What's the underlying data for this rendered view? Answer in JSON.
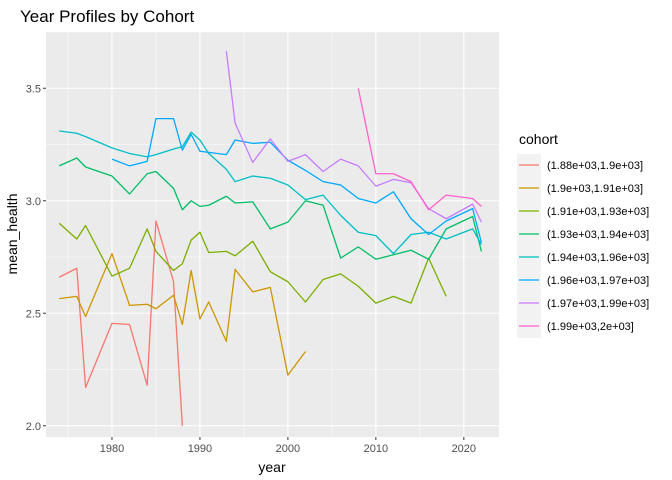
{
  "chart_data": {
    "type": "line",
    "title": "Year Profiles by Cohort",
    "xlabel": "year",
    "ylabel": "mean_health",
    "xlim": [
      1972.5,
      2024
    ],
    "ylim": [
      1.95,
      3.75
    ],
    "x_ticks": [
      1980,
      1990,
      2000,
      2010,
      2020
    ],
    "y_ticks": [
      2.0,
      2.5,
      3.0,
      3.5
    ],
    "x_tick_labels": [
      "1980",
      "1990",
      "2000",
      "2010",
      "2020"
    ],
    "y_tick_labels": [
      "2.0",
      "2.5",
      "3.0",
      "3.5"
    ],
    "grid": true,
    "legend": {
      "title": "cohort",
      "position": "right"
    },
    "series": [
      {
        "name": "(1.88e+03,1.9e+03]",
        "color": "#F8766D",
        "x": [
          1974,
          1976,
          1977,
          1980,
          1982,
          1984,
          1985,
          1987,
          1988
        ],
        "y": [
          2.66,
          2.7,
          2.17,
          2.455,
          2.45,
          2.18,
          2.91,
          2.64,
          2.0
        ]
      },
      {
        "name": "(1.9e+03,1.91e+03]",
        "color": "#CD9600",
        "x": [
          1974,
          1976,
          1977,
          1980,
          1982,
          1984,
          1985,
          1987,
          1988,
          1989,
          1990,
          1991,
          1993,
          1994,
          1996,
          1998,
          2000,
          2002
        ],
        "y": [
          2.565,
          2.575,
          2.485,
          2.765,
          2.535,
          2.54,
          2.52,
          2.58,
          2.45,
          2.69,
          2.475,
          2.55,
          2.375,
          2.695,
          2.595,
          2.615,
          2.225,
          2.33
        ]
      },
      {
        "name": "(1.91e+03,1.93e+03]",
        "color": "#7CAE00",
        "x": [
          1974,
          1976,
          1977,
          1980,
          1982,
          1984,
          1985,
          1987,
          1988,
          1989,
          1990,
          1991,
          1993,
          1994,
          1996,
          1998,
          2000,
          2002,
          2004,
          2006,
          2008,
          2010,
          2012,
          2014,
          2016,
          2018
        ],
        "y": [
          2.9,
          2.83,
          2.89,
          2.665,
          2.7,
          2.875,
          2.775,
          2.69,
          2.72,
          2.825,
          2.86,
          2.77,
          2.775,
          2.755,
          2.82,
          2.685,
          2.64,
          2.55,
          2.65,
          2.675,
          2.62,
          2.545,
          2.575,
          2.545,
          2.745,
          2.575
        ]
      },
      {
        "name": "(1.93e+03,1.94e+03]",
        "color": "#00BE67",
        "x": [
          1974,
          1976,
          1977,
          1980,
          1982,
          1984,
          1985,
          1987,
          1988,
          1989,
          1990,
          1991,
          1993,
          1994,
          1996,
          1998,
          2000,
          2002,
          2004,
          2006,
          2008,
          2010,
          2012,
          2014,
          2016,
          2018,
          2021,
          2022
        ],
        "y": [
          3.155,
          3.19,
          3.15,
          3.11,
          3.03,
          3.12,
          3.13,
          3.055,
          2.96,
          3.0,
          2.975,
          2.98,
          3.02,
          2.99,
          2.995,
          2.875,
          2.905,
          3.0,
          2.98,
          2.745,
          2.795,
          2.74,
          2.76,
          2.78,
          2.74,
          2.875,
          2.93,
          2.775
        ]
      },
      {
        "name": "(1.94e+03,1.96e+03]",
        "color": "#00BFC4",
        "x": [
          1974,
          1976,
          1977,
          1980,
          1982,
          1984,
          1985,
          1987,
          1988,
          1989,
          1990,
          1991,
          1993,
          1994,
          1996,
          1998,
          2000,
          2002,
          2004,
          2006,
          2008,
          2010,
          2012,
          2014,
          2016,
          2018,
          2021,
          2022
        ],
        "y": [
          3.31,
          3.3,
          3.285,
          3.235,
          3.21,
          3.195,
          3.205,
          3.23,
          3.24,
          3.305,
          3.27,
          3.21,
          3.14,
          3.085,
          3.11,
          3.1,
          3.07,
          3.005,
          3.025,
          2.935,
          2.86,
          2.845,
          2.765,
          2.85,
          2.86,
          2.83,
          2.875,
          2.805
        ]
      },
      {
        "name": "(1.96e+03,1.97e+03]",
        "color": "#00A9FF",
        "x": [
          1980,
          1982,
          1984,
          1985,
          1987,
          1988,
          1989,
          1990,
          1991,
          1993,
          1994,
          1996,
          1998,
          2000,
          2002,
          2004,
          2006,
          2008,
          2010,
          2012,
          2014,
          2016,
          2018,
          2021,
          2022
        ],
        "y": [
          3.185,
          3.155,
          3.175,
          3.365,
          3.365,
          3.225,
          3.295,
          3.22,
          3.215,
          3.205,
          3.27,
          3.255,
          3.26,
          3.18,
          3.135,
          3.085,
          3.07,
          3.01,
          2.99,
          3.04,
          2.92,
          2.85,
          2.91,
          2.965,
          2.815
        ]
      },
      {
        "name": "(1.97e+03,1.99e+03]",
        "color": "#C77CFF",
        "x": [
          1993,
          1994,
          1996,
          1998,
          2000,
          2002,
          2004,
          2006,
          2008,
          2010,
          2012,
          2014,
          2016,
          2018,
          2021,
          2022
        ],
        "y": [
          3.665,
          3.345,
          3.17,
          3.275,
          3.175,
          3.205,
          3.13,
          3.185,
          3.155,
          3.065,
          3.095,
          3.08,
          2.965,
          2.92,
          2.985,
          2.905
        ]
      },
      {
        "name": "(1.99e+03,2e+03]",
        "color": "#FF61CC",
        "x": [
          2008,
          2010,
          2012,
          2014,
          2016,
          2018,
          2021,
          2022
        ],
        "y": [
          3.5,
          3.12,
          3.12,
          3.085,
          2.96,
          3.025,
          3.01,
          2.975
        ]
      }
    ]
  }
}
